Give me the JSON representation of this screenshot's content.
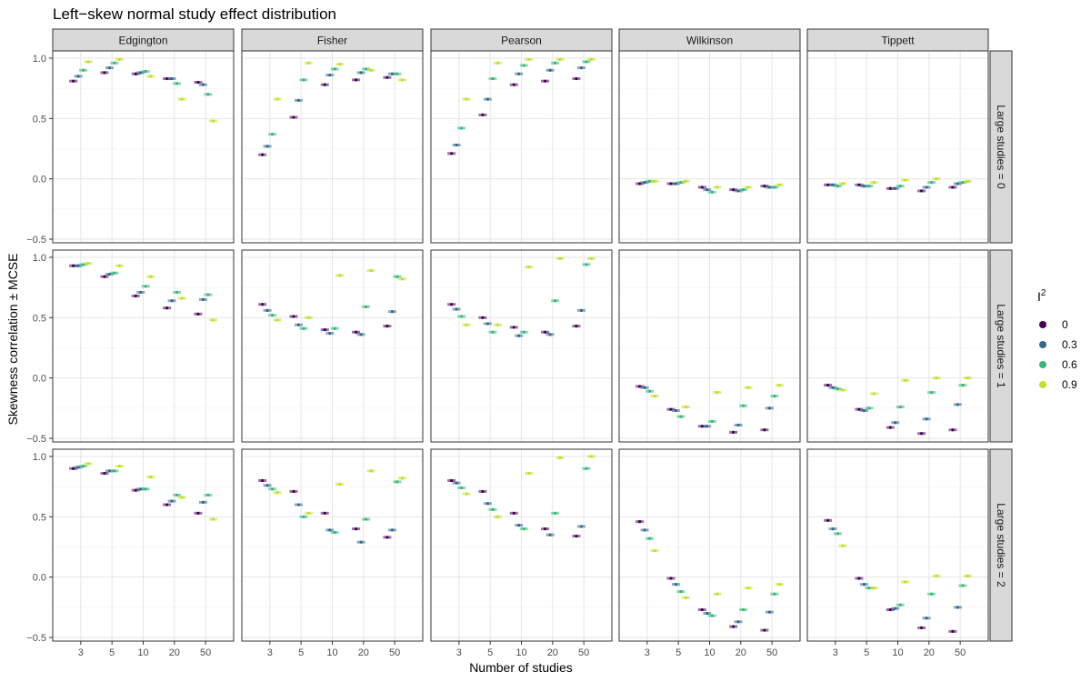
{
  "chart_data": {
    "type": "scatter",
    "title": "Left−skew normal study effect distribution",
    "xlabel": "Number of studies",
    "ylabel": "Skewness correlation ± MCSE",
    "x_categories": [
      "3",
      "5",
      "10",
      "20",
      "50"
    ],
    "y_ticks": [
      "−0.5",
      "0.0",
      "0.5",
      "1.0"
    ],
    "ylim": [
      -0.53,
      1.06
    ],
    "columns": [
      "Edgington",
      "Fisher",
      "Pearson",
      "Wilkinson",
      "Tippett"
    ],
    "rows": [
      "Large studies = 0",
      "Large studies = 1",
      "Large studies = 2"
    ],
    "legend": {
      "title": "I",
      "title_superscript": "2",
      "entries": [
        "0",
        "0.3",
        "0.6",
        "0.9"
      ],
      "placement": "right"
    },
    "series_colors": [
      "#440154",
      "#31688E",
      "#35B779",
      "#C2DF23"
    ],
    "grid": true,
    "data": [
      [
        [
          [
            0.81,
            0.85,
            0.9,
            0.97
          ],
          [
            0.88,
            0.92,
            0.96,
            0.99
          ],
          [
            0.87,
            0.88,
            0.89,
            0.85
          ],
          [
            0.83,
            0.83,
            0.79,
            0.66
          ],
          [
            0.8,
            0.78,
            0.7,
            0.48
          ]
        ],
        [
          [
            0.2,
            0.27,
            0.37,
            0.66
          ],
          [
            0.51,
            0.65,
            0.82,
            0.96
          ],
          [
            0.78,
            0.86,
            0.91,
            0.95
          ],
          [
            0.82,
            0.88,
            0.91,
            0.9
          ],
          [
            0.84,
            0.87,
            0.87,
            0.82
          ]
        ],
        [
          [
            0.21,
            0.28,
            0.42,
            0.66
          ],
          [
            0.53,
            0.66,
            0.83,
            0.96
          ],
          [
            0.78,
            0.87,
            0.94,
            0.99
          ],
          [
            0.81,
            0.9,
            0.96,
            0.99
          ],
          [
            0.83,
            0.92,
            0.97,
            0.99
          ]
        ],
        [
          [
            -0.04,
            -0.03,
            -0.02,
            -0.02
          ],
          [
            -0.04,
            -0.04,
            -0.03,
            -0.02
          ],
          [
            -0.07,
            -0.09,
            -0.11,
            -0.07
          ],
          [
            -0.09,
            -0.1,
            -0.09,
            -0.07
          ],
          [
            -0.06,
            -0.07,
            -0.07,
            -0.05
          ]
        ],
        [
          [
            -0.05,
            -0.05,
            -0.06,
            -0.04
          ],
          [
            -0.05,
            -0.06,
            -0.06,
            -0.03
          ],
          [
            -0.08,
            -0.08,
            -0.06,
            -0.01
          ],
          [
            -0.1,
            -0.07,
            -0.03,
            0.0
          ],
          [
            -0.07,
            -0.04,
            -0.03,
            -0.02
          ]
        ]
      ],
      [
        [
          [
            0.93,
            0.93,
            0.94,
            0.95
          ],
          [
            0.84,
            0.86,
            0.87,
            0.93
          ],
          [
            0.68,
            0.71,
            0.76,
            0.84
          ],
          [
            0.58,
            0.64,
            0.71,
            0.66
          ],
          [
            0.53,
            0.65,
            0.69,
            0.48
          ]
        ],
        [
          [
            0.61,
            0.56,
            0.52,
            0.48
          ],
          [
            0.51,
            0.44,
            0.41,
            0.5
          ],
          [
            0.4,
            0.37,
            0.41,
            0.85
          ],
          [
            0.38,
            0.36,
            0.59,
            0.89
          ],
          [
            0.43,
            0.55,
            0.84,
            0.82
          ]
        ],
        [
          [
            0.61,
            0.57,
            0.51,
            0.44
          ],
          [
            0.5,
            0.45,
            0.38,
            0.44
          ],
          [
            0.42,
            0.35,
            0.38,
            0.92
          ],
          [
            0.38,
            0.36,
            0.64,
            0.99
          ],
          [
            0.43,
            0.56,
            0.94,
            0.99
          ]
        ],
        [
          [
            -0.07,
            -0.08,
            -0.11,
            -0.15
          ],
          [
            -0.26,
            -0.27,
            -0.32,
            -0.24
          ],
          [
            -0.4,
            -0.4,
            -0.36,
            -0.12
          ],
          [
            -0.45,
            -0.39,
            -0.23,
            -0.08
          ],
          [
            -0.43,
            -0.25,
            -0.15,
            -0.06
          ]
        ],
        [
          [
            -0.06,
            -0.08,
            -0.09,
            -0.1
          ],
          [
            -0.26,
            -0.27,
            -0.25,
            -0.13
          ],
          [
            -0.41,
            -0.37,
            -0.24,
            -0.02
          ],
          [
            -0.46,
            -0.34,
            -0.12,
            0.0
          ],
          [
            -0.43,
            -0.22,
            -0.06,
            0.0
          ]
        ]
      ],
      [
        [
          [
            0.9,
            0.91,
            0.92,
            0.94
          ],
          [
            0.86,
            0.88,
            0.88,
            0.92
          ],
          [
            0.72,
            0.73,
            0.73,
            0.83
          ],
          [
            0.6,
            0.63,
            0.68,
            0.66
          ],
          [
            0.53,
            0.62,
            0.68,
            0.48
          ]
        ],
        [
          [
            0.8,
            0.76,
            0.73,
            0.7
          ],
          [
            0.71,
            0.6,
            0.5,
            0.53
          ],
          [
            0.53,
            0.39,
            0.37,
            0.77
          ],
          [
            0.4,
            0.29,
            0.48,
            0.88
          ],
          [
            0.33,
            0.39,
            0.79,
            0.82
          ]
        ],
        [
          [
            0.8,
            0.78,
            0.74,
            0.69
          ],
          [
            0.71,
            0.61,
            0.56,
            0.5
          ],
          [
            0.53,
            0.43,
            0.4,
            0.86
          ],
          [
            0.4,
            0.35,
            0.53,
            0.99
          ],
          [
            0.34,
            0.42,
            0.9,
            1.0
          ]
        ],
        [
          [
            0.46,
            0.39,
            0.32,
            0.22
          ],
          [
            -0.01,
            -0.06,
            -0.12,
            -0.17
          ],
          [
            -0.27,
            -0.3,
            -0.32,
            -0.14
          ],
          [
            -0.41,
            -0.37,
            -0.27,
            -0.09
          ],
          [
            -0.44,
            -0.29,
            -0.14,
            -0.06
          ]
        ],
        [
          [
            0.47,
            0.4,
            0.36,
            0.26
          ],
          [
            -0.01,
            -0.06,
            -0.09,
            -0.09
          ],
          [
            -0.27,
            -0.26,
            -0.23,
            -0.04
          ],
          [
            -0.42,
            -0.34,
            -0.14,
            0.01
          ],
          [
            -0.45,
            -0.25,
            -0.07,
            0.01
          ]
        ]
      ]
    ]
  }
}
